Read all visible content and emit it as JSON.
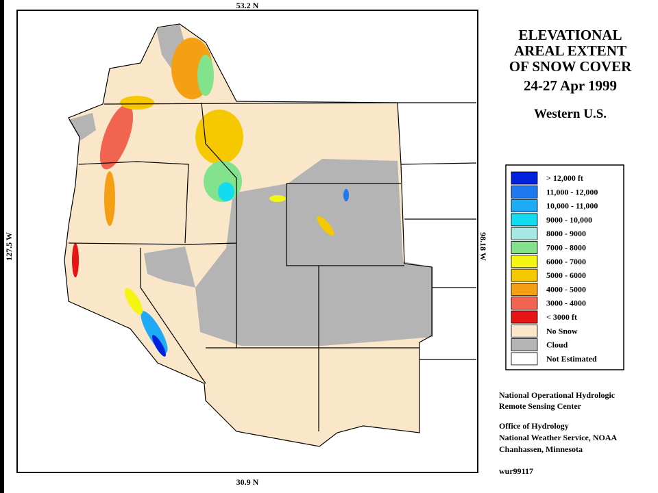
{
  "map": {
    "lat_top": "53.2 N",
    "lat_bottom": "30.9 N",
    "lon_left": "127.5 W",
    "lon_right": "98.18 W",
    "title": [
      "ELEVATIONAL",
      "AREAL EXTENT",
      "OF SNOW COVER"
    ],
    "date": "24-27 Apr 1999",
    "region": "Western U.S.",
    "legend": [
      {
        "label": "> 12,000 ft",
        "color": "#0022dd"
      },
      {
        "label": "11,000 - 12,000",
        "color": "#1e78f0"
      },
      {
        "label": "10,000 - 11,000",
        "color": "#1eaaf5"
      },
      {
        "label": "9000 - 10,000",
        "color": "#14dcf0"
      },
      {
        "label": "8000 - 9000",
        "color": "#a8e8e4"
      },
      {
        "label": "7000 - 8000",
        "color": "#82e38c"
      },
      {
        "label": "6000 - 7000",
        "color": "#f5f514"
      },
      {
        "label": "5000 - 6000",
        "color": "#f5c800"
      },
      {
        "label": "4000 - 5000",
        "color": "#f5a014"
      },
      {
        "label": "3000 - 4000",
        "color": "#f06450"
      },
      {
        "label": "< 3000 ft",
        "color": "#e61414"
      },
      {
        "label": "No Snow",
        "color": "#fae6c8"
      },
      {
        "label": "Cloud",
        "color": "#b4b4b4"
      },
      {
        "label": "Not Estimated",
        "color": "#ffffff"
      }
    ],
    "credits": {
      "center": [
        "National Operational Hydrologic",
        "Remote Sensing Center"
      ],
      "office": [
        "Office of Hydrology",
        "National Weather Service, NOAA",
        "Chanhassen, Minnesota"
      ],
      "code": "wur99117"
    }
  }
}
